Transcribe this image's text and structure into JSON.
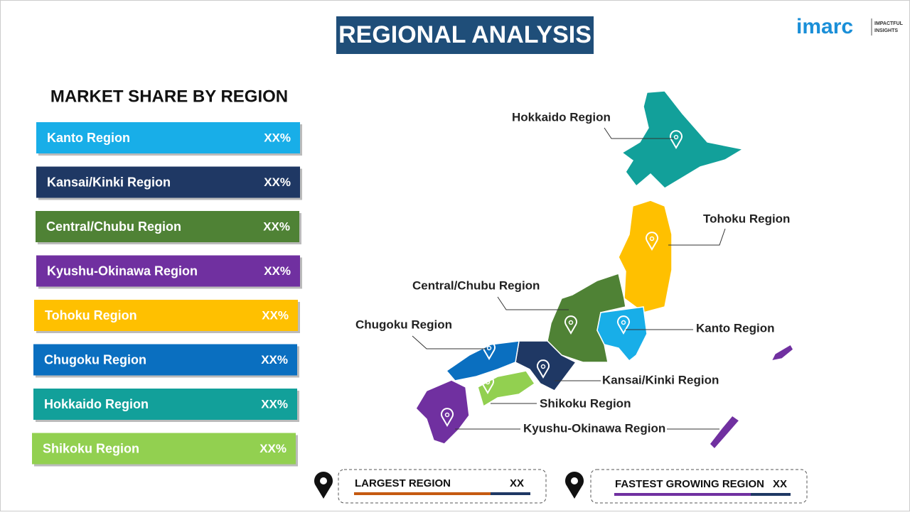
{
  "header": {
    "title": "REGIONAL ANALYSIS",
    "logo": "imarc",
    "tagline": [
      "IMPACTFUL",
      "INSIGHTS"
    ]
  },
  "market_share": {
    "title": "MARKET SHARE BY REGION",
    "rows": [
      {
        "name": "Kanto Region",
        "share": "XX%",
        "color": "#18aee8"
      },
      {
        "name": "Kansai/Kinki  Region",
        "share": "XX%",
        "color": "#1f3864"
      },
      {
        "name": "Central/Chubu  Region",
        "share": "XX%",
        "color": "#4f8235"
      },
      {
        "name": "Kyushu-Okinawa  Region",
        "share": "XX%",
        "color": "#7030a0"
      },
      {
        "name": "Tohoku Region",
        "share": "XX%",
        "color": "#ffc000"
      },
      {
        "name": "Chugoku Region",
        "share": "XX%",
        "color": "#0a6fc0"
      },
      {
        "name": "Hokkaido  Region",
        "share": "XX%",
        "color": "#12a09a"
      },
      {
        "name": "Shikoku  Region",
        "share": "XX%",
        "color": "#92d050"
      }
    ]
  },
  "map_labels": [
    "Hokkaido Region",
    "Tohoku Region",
    "Central/Chubu Region",
    "Chugoku Region",
    "Kanto Region",
    "Kansai/Kinki Region",
    "Shikoku Region",
    "Kyushu-Okinawa Region"
  ],
  "footer": {
    "largest": {
      "label": "LARGEST REGION",
      "value": "XX"
    },
    "fastest": {
      "label": "FASTEST GROWING REGION",
      "value": "XX"
    }
  }
}
